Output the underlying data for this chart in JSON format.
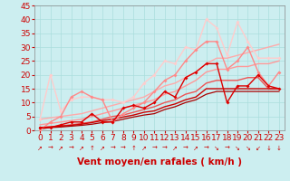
{
  "xlabel": "Vent moyen/en rafales ( km/h )",
  "xlim": [
    -0.5,
    23.5
  ],
  "ylim": [
    0,
    45
  ],
  "xticks": [
    0,
    1,
    2,
    3,
    4,
    5,
    6,
    7,
    8,
    9,
    10,
    11,
    12,
    13,
    14,
    15,
    16,
    17,
    18,
    19,
    20,
    21,
    22,
    23
  ],
  "yticks": [
    0,
    5,
    10,
    15,
    20,
    25,
    30,
    35,
    40,
    45
  ],
  "bg_color": "#cceef0",
  "grid_color": "#aadddd",
  "series": [
    {
      "comment": "light pink diagonal line (straight, top)",
      "x": [
        0,
        1,
        2,
        3,
        4,
        5,
        6,
        7,
        8,
        9,
        10,
        11,
        12,
        13,
        14,
        15,
        16,
        17,
        18,
        19,
        20,
        21,
        22,
        23
      ],
      "y": [
        4,
        4.5,
        5,
        5.5,
        6,
        7,
        8,
        9,
        10,
        11,
        12,
        14,
        16,
        17,
        19,
        21,
        24,
        26,
        26,
        27,
        28,
        29,
        30,
        31
      ],
      "color": "#ffaaaa",
      "lw": 1.0,
      "marker": null,
      "ms": 0,
      "zorder": 2
    },
    {
      "comment": "pink diagonal line 2",
      "x": [
        0,
        1,
        2,
        3,
        4,
        5,
        6,
        7,
        8,
        9,
        10,
        11,
        12,
        13,
        14,
        15,
        16,
        17,
        18,
        19,
        20,
        21,
        22,
        23
      ],
      "y": [
        2,
        2.5,
        3,
        3.5,
        4,
        5,
        6,
        7,
        8,
        9,
        10,
        11,
        13,
        14,
        16,
        18,
        21,
        22,
        22,
        23,
        23,
        24,
        24,
        25
      ],
      "color": "#ff9999",
      "lw": 1.0,
      "marker": null,
      "ms": 0,
      "zorder": 2
    },
    {
      "comment": "medium red diagonal line",
      "x": [
        0,
        1,
        2,
        3,
        4,
        5,
        6,
        7,
        8,
        9,
        10,
        11,
        12,
        13,
        14,
        15,
        16,
        17,
        18,
        19,
        20,
        21,
        22,
        23
      ],
      "y": [
        1,
        1.3,
        1.6,
        2,
        2.5,
        3,
        4,
        5,
        5.5,
        6.5,
        7.5,
        8.5,
        10,
        11,
        13,
        14,
        17,
        18,
        18,
        18,
        19,
        19,
        15,
        15
      ],
      "color": "#ee5555",
      "lw": 1.0,
      "marker": null,
      "ms": 0,
      "zorder": 2
    },
    {
      "comment": "dark red diagonal lower",
      "x": [
        0,
        1,
        2,
        3,
        4,
        5,
        6,
        7,
        8,
        9,
        10,
        11,
        12,
        13,
        14,
        15,
        16,
        17,
        18,
        19,
        20,
        21,
        22,
        23
      ],
      "y": [
        1,
        1.2,
        1.5,
        1.8,
        2.2,
        2.8,
        3.5,
        4,
        4.8,
        5.5,
        6.5,
        7,
        8.5,
        9.5,
        11,
        12,
        15,
        15,
        15,
        15,
        15,
        15,
        15,
        15
      ],
      "color": "#cc0000",
      "lw": 1.0,
      "marker": null,
      "ms": 0,
      "zorder": 2
    },
    {
      "comment": "darkest red diagonal lowest",
      "x": [
        0,
        1,
        2,
        3,
        4,
        5,
        6,
        7,
        8,
        9,
        10,
        11,
        12,
        13,
        14,
        15,
        16,
        17,
        18,
        19,
        20,
        21,
        22,
        23
      ],
      "y": [
        0.5,
        1,
        1.2,
        1.5,
        1.8,
        2.2,
        2.8,
        3.2,
        4,
        4.8,
        5.5,
        6,
        7.5,
        8.5,
        10,
        11,
        13,
        14,
        14,
        14,
        14,
        14,
        14,
        14
      ],
      "color": "#aa0000",
      "lw": 0.9,
      "marker": null,
      "ms": 0,
      "zorder": 2
    },
    {
      "comment": "light pink with markers - jagged top line",
      "x": [
        0,
        1,
        2,
        3,
        4,
        5,
        6,
        7,
        8,
        9,
        10,
        11,
        12,
        13,
        14,
        15,
        16,
        17,
        18,
        19,
        20,
        21,
        22,
        23
      ],
      "y": [
        4,
        20,
        7,
        11,
        12,
        12,
        11,
        11,
        10,
        12,
        17,
        20,
        25,
        24,
        30,
        29,
        40,
        37,
        27,
        39,
        32,
        26,
        26,
        26
      ],
      "color": "#ffcccc",
      "lw": 1.0,
      "marker": "D",
      "ms": 2.0,
      "zorder": 3
    },
    {
      "comment": "medium pink with markers",
      "x": [
        0,
        1,
        2,
        3,
        4,
        5,
        6,
        7,
        8,
        9,
        10,
        11,
        12,
        13,
        14,
        15,
        16,
        17,
        18,
        19,
        20,
        21,
        22,
        23
      ],
      "y": [
        0,
        3,
        5,
        12,
        14,
        12,
        11,
        3,
        6,
        8,
        10,
        14,
        18,
        20,
        25,
        29,
        32,
        32,
        22,
        25,
        30,
        21,
        16,
        21
      ],
      "color": "#ff8888",
      "lw": 1.0,
      "marker": "D",
      "ms": 2.0,
      "zorder": 4
    },
    {
      "comment": "dark red with markers - jagged middle",
      "x": [
        0,
        1,
        2,
        3,
        4,
        5,
        6,
        7,
        8,
        9,
        10,
        11,
        12,
        13,
        14,
        15,
        16,
        17,
        18,
        19,
        20,
        21,
        22,
        23
      ],
      "y": [
        1,
        1,
        2,
        3,
        3,
        6,
        3,
        3,
        8,
        9,
        8,
        10,
        14,
        12,
        19,
        21,
        24,
        24,
        10,
        16,
        16,
        20,
        16,
        15
      ],
      "color": "#dd0000",
      "lw": 1.0,
      "marker": "D",
      "ms": 2.0,
      "zorder": 5
    }
  ],
  "arrows": [
    "↗",
    "→",
    "↗",
    "→",
    "↗",
    "↑",
    "↗",
    "→",
    "→",
    "↑",
    "↗",
    "→",
    "→",
    "↗",
    "→",
    "↗",
    "→",
    "↘",
    "→",
    "↘",
    "↘",
    "↙",
    "↓",
    "↓"
  ],
  "arrow_color": "#cc0000",
  "xlabel_color": "#cc0000",
  "xlabel_fontsize": 7.5,
  "tick_fontsize": 6.5,
  "tick_color": "#cc0000"
}
